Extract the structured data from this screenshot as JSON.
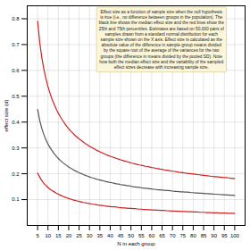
{
  "chart_data": {
    "type": "line",
    "xlabel": "N in each group",
    "ylabel": "effect size (d)",
    "annotation": "Effect size as a function of sample size when the null hypothesis\nis true (i.e., no difference between groups in the population). The\nblack line shows the median effect size and the red lines show the\n25th and 75th percentiles. Estimates are based on 50,000 pairs of\nsamples drawn from a standard normal distribution for each\nsample size shown on the X axis. Effect size is calculated as the\nabsolute value of the difference in sample group means divided\nby the square root of the average of the variances for the two\ngroups (the difference in means divided by the pooled SD). Note\nhow both the median effect size and the variability of the sampled\neffect sizes decrease with increasing sample size.",
    "x": [
      5,
      6,
      7,
      8,
      9,
      10,
      11,
      12,
      13,
      14,
      15,
      16,
      17,
      18,
      19,
      20,
      21,
      22,
      23,
      24,
      25,
      26,
      27,
      28,
      29,
      30,
      31,
      32,
      33,
      34,
      35,
      36,
      37,
      38,
      39,
      40,
      41,
      42,
      43,
      44,
      45,
      46,
      47,
      48,
      49,
      50,
      51,
      52,
      53,
      54,
      55,
      56,
      57,
      58,
      59,
      60,
      61,
      62,
      63,
      64,
      65,
      66,
      67,
      68,
      69,
      70,
      71,
      72,
      73,
      74,
      75,
      76,
      77,
      78,
      79,
      80,
      81,
      82,
      83,
      84,
      85,
      86,
      87,
      88,
      89,
      90,
      91,
      92,
      93,
      94,
      95,
      96,
      97,
      98,
      99,
      100
    ],
    "series": [
      {
        "color": "#cc2222",
        "values": [
          0.79,
          0.71,
          0.651,
          0.605,
          0.568,
          0.537,
          0.511,
          0.488,
          0.468,
          0.45,
          0.434,
          0.42,
          0.407,
          0.395,
          0.384,
          0.374,
          0.365,
          0.357,
          0.349,
          0.342,
          0.335,
          0.329,
          0.323,
          0.317,
          0.312,
          0.307,
          0.302,
          0.298,
          0.293,
          0.289,
          0.285,
          0.281,
          0.278,
          0.274,
          0.271,
          0.268,
          0.265,
          0.262,
          0.259,
          0.257,
          0.254,
          0.252,
          0.249,
          0.247,
          0.245,
          0.242,
          0.24,
          0.238,
          0.236,
          0.234,
          0.233,
          0.231,
          0.229,
          0.228,
          0.226,
          0.224,
          0.223,
          0.221,
          0.22,
          0.218,
          0.217,
          0.215,
          0.214,
          0.213,
          0.211,
          0.21,
          0.209,
          0.208,
          0.206,
          0.205,
          0.204,
          0.203,
          0.202,
          0.201,
          0.2,
          0.199,
          0.198,
          0.197,
          0.196,
          0.195,
          0.194,
          0.193,
          0.192,
          0.191,
          0.19,
          0.189,
          0.189,
          0.188,
          0.187,
          0.186,
          0.185,
          0.185,
          0.184,
          0.183,
          0.182,
          0.182
        ]
      },
      {
        "color": "#555555",
        "values": [
          0.449,
          0.407,
          0.376,
          0.352,
          0.332,
          0.315,
          0.301,
          0.289,
          0.278,
          0.268,
          0.259,
          0.251,
          0.244,
          0.238,
          0.232,
          0.226,
          0.221,
          0.217,
          0.212,
          0.208,
          0.204,
          0.201,
          0.197,
          0.194,
          0.191,
          0.188,
          0.185,
          0.183,
          0.18,
          0.178,
          0.176,
          0.174,
          0.172,
          0.17,
          0.168,
          0.166,
          0.165,
          0.163,
          0.161,
          0.16,
          0.158,
          0.157,
          0.156,
          0.154,
          0.153,
          0.152,
          0.15,
          0.149,
          0.148,
          0.147,
          0.146,
          0.145,
          0.144,
          0.143,
          0.142,
          0.141,
          0.14,
          0.139,
          0.138,
          0.138,
          0.137,
          0.136,
          0.135,
          0.135,
          0.134,
          0.133,
          0.132,
          0.132,
          0.131,
          0.13,
          0.13,
          0.129,
          0.129,
          0.128,
          0.127,
          0.127,
          0.126,
          0.126,
          0.125,
          0.125,
          0.124,
          0.123,
          0.123,
          0.122,
          0.122,
          0.121,
          0.121,
          0.12,
          0.12,
          0.119,
          0.119,
          0.118,
          0.118,
          0.117,
          0.117,
          0.116
        ]
      },
      {
        "color": "#cc2222",
        "values": [
          0.203,
          0.187,
          0.174,
          0.163,
          0.155,
          0.147,
          0.14,
          0.135,
          0.13,
          0.125,
          0.121,
          0.117,
          0.113,
          0.11,
          0.107,
          0.104,
          0.102,
          0.099,
          0.097,
          0.095,
          0.093,
          0.091,
          0.089,
          0.088,
          0.086,
          0.085,
          0.083,
          0.082,
          0.081,
          0.079,
          0.078,
          0.077,
          0.076,
          0.075,
          0.074,
          0.073,
          0.072,
          0.072,
          0.071,
          0.07,
          0.069,
          0.068,
          0.068,
          0.067,
          0.066,
          0.066,
          0.065,
          0.065,
          0.064,
          0.063,
          0.063,
          0.062,
          0.062,
          0.061,
          0.061,
          0.06,
          0.06,
          0.059,
          0.059,
          0.058,
          0.058,
          0.058,
          0.057,
          0.057,
          0.056,
          0.056,
          0.056,
          0.055,
          0.055,
          0.054,
          0.054,
          0.054,
          0.053,
          0.053,
          0.053,
          0.052,
          0.052,
          0.052,
          0.051,
          0.051,
          0.051,
          0.05,
          0.05,
          0.05,
          0.049,
          0.049,
          0.049,
          0.049,
          0.048,
          0.048,
          0.048,
          0.048,
          0.047,
          0.047,
          0.047,
          0.046
        ]
      }
    ],
    "xlim": [
      0,
      105
    ],
    "ylim": [
      0,
      0.85
    ],
    "xticks": [
      5,
      10,
      15,
      20,
      25,
      30,
      35,
      40,
      45,
      50,
      55,
      60,
      65,
      70,
      75,
      80,
      85,
      90,
      95,
      100
    ],
    "yticks": [
      0.1,
      0.2,
      0.3,
      0.4,
      0.5,
      0.6,
      0.7,
      0.8
    ],
    "grid": true
  }
}
